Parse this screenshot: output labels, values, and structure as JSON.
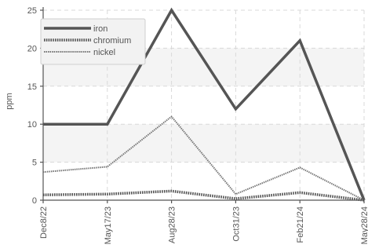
{
  "chart_data": {
    "type": "line",
    "title": "",
    "xlabel": "",
    "ylabel": "ppm",
    "ylim": [
      0,
      25
    ],
    "yticks": [
      0,
      5,
      10,
      15,
      20,
      25
    ],
    "grid": true,
    "legend_position": "top-left",
    "categories": [
      "Dec8/22",
      "May17/23",
      "Aug28/23",
      "Oct31/23",
      "Feb21/24",
      "May28/24"
    ],
    "series": [
      {
        "name": "iron",
        "values": [
          10,
          10,
          25,
          12,
          21,
          0
        ],
        "color": "#555555",
        "style": "solid"
      },
      {
        "name": "chromium",
        "values": [
          0.7,
          0.8,
          1.2,
          0.2,
          1.0,
          0
        ],
        "color": "#555555",
        "style": "dotted"
      },
      {
        "name": "nickel",
        "values": [
          3.7,
          4.4,
          11,
          0.8,
          4.3,
          0
        ],
        "color": "#777777",
        "style": "dashed-thin"
      }
    ]
  }
}
